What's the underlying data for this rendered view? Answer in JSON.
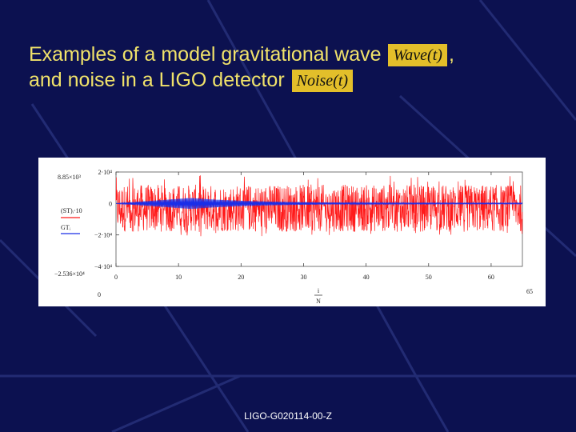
{
  "slide": {
    "title_line1": "Examples of a model gravitational wave",
    "wave_label": "Wave(t)",
    "comma": ",",
    "title_line2": "and noise in a LIGO detector",
    "noise_label": "Noise(t)",
    "footer": "LIGO-G020114-00-Z"
  },
  "colors": {
    "background": "#0c1150",
    "title": "#f0e26a",
    "equation_box": "#e3bf2a",
    "wave_series": "#1a2ee8",
    "noise_series": "#ff1a1a"
  },
  "chart_data": {
    "type": "line",
    "xlim": [
      0,
      65
    ],
    "ylim": [
      -40000,
      20000
    ],
    "x_ticks": [
      "0",
      "10",
      "20",
      "30",
      "40",
      "50",
      "60"
    ],
    "x_end_label": "65",
    "x_origin_label": "0",
    "xlabel_num": "i",
    "xlabel_den": "N",
    "y_ticks": [
      {
        "label": "2·10⁴",
        "value": 20000
      },
      {
        "label": "0",
        "value": 0
      },
      {
        "label": "−2·10⁴",
        "value": -20000
      },
      {
        "label": "−4·10⁴",
        "value": -40000
      }
    ],
    "y_extra_labels": {
      "top": "8.85×10³",
      "bottom": "−2.536×10⁴"
    },
    "series_labels": [
      "(ST)ᵢ·10",
      "GTᵢ"
    ],
    "series": [
      {
        "key": "wave",
        "color": "#1a2ee8",
        "amplitude_start": 100,
        "amplitude_peak": 3500,
        "peak_x": 12,
        "amplitude_end": 300
      },
      {
        "key": "noise",
        "color": "#ff1a1a",
        "level_min": -18000,
        "level_max": 12000,
        "spike_max": 18000,
        "spike_min": -21000
      }
    ]
  }
}
